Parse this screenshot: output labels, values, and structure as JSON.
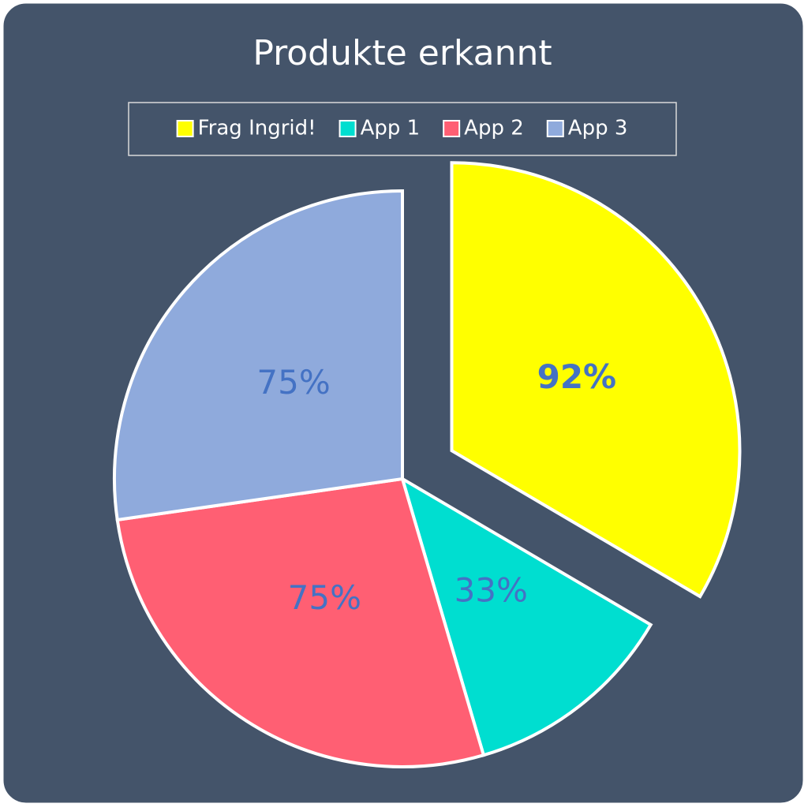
{
  "chart_data": {
    "type": "pie",
    "title": "Produkte erkannt",
    "categories": [
      "Frag Ingrid!",
      "App 1",
      "App 2",
      "App 3"
    ],
    "values": [
      92,
      33,
      75,
      75
    ],
    "value_labels": [
      "92%",
      "33%",
      "75%",
      "75%"
    ],
    "colors": [
      "#ffff00",
      "#00ded0",
      "#ff5f73",
      "#8faadc"
    ],
    "label_color": "#4472c4",
    "legend": "top"
  }
}
